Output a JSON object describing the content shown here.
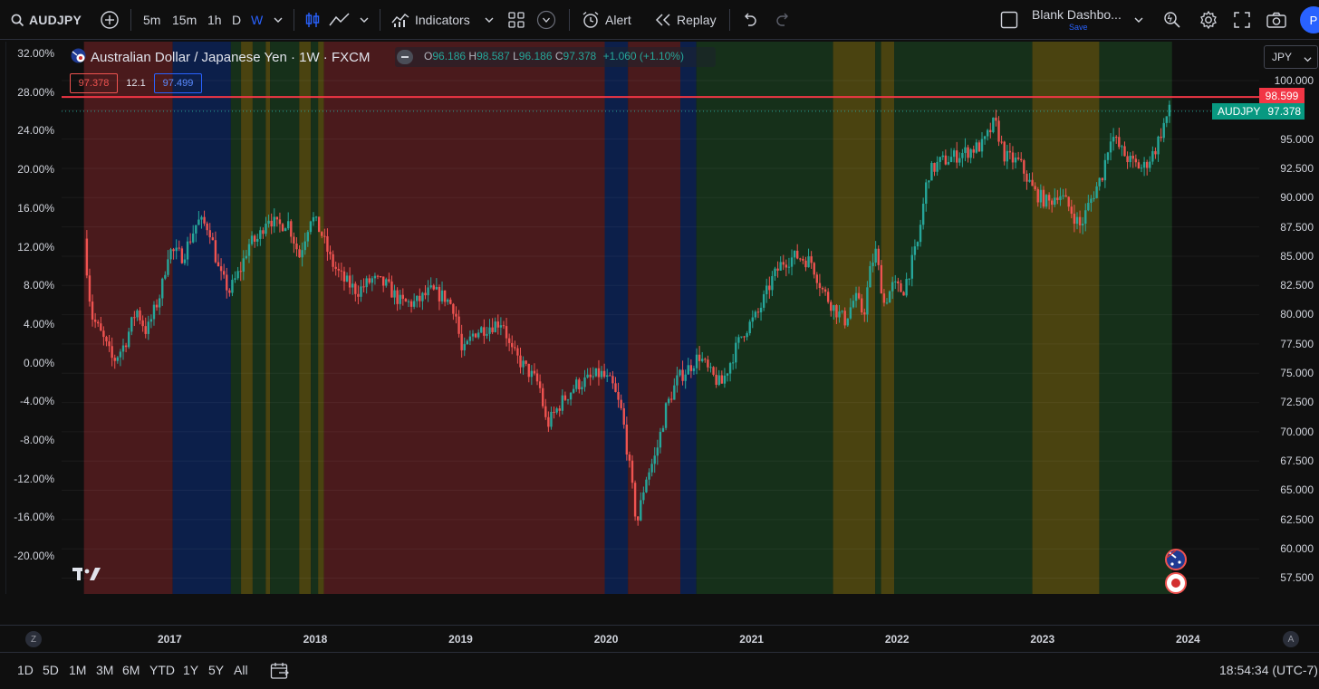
{
  "toolbar": {
    "symbol": "AUDJPY",
    "intervals": [
      "5m",
      "15m",
      "1h",
      "D",
      "W"
    ],
    "indicators_label": "Indicators",
    "alert_label": "Alert",
    "replay_label": "Replay",
    "layout_name": "Blank Dashbo...",
    "layout_save": "Save",
    "avatar_letter": "P"
  },
  "legend": {
    "title": "Australian Dollar / Japanese Yen · 1W · FXCM",
    "o_label": "O",
    "o": "96.186",
    "h_label": "H",
    "h": "98.587",
    "l_label": "L",
    "l": "96.186",
    "c_label": "C",
    "c": "97.378",
    "change": "+1.060 (+1.10%)",
    "sell": "97.378",
    "spread": "12.1",
    "buy": "97.499"
  },
  "price_scale": {
    "currency": "JPY",
    "labels": [
      "100.000",
      "97.500",
      "95.000",
      "92.500",
      "90.000",
      "87.500",
      "85.000",
      "82.500",
      "80.000",
      "77.500",
      "75.000",
      "72.500",
      "70.000",
      "67.500",
      "65.000",
      "62.500",
      "60.000",
      "57.500"
    ],
    "hline_value": "98.599",
    "last_symbol": "AUDJPY",
    "last_value": "97.378"
  },
  "pct_scale": {
    "labels": [
      "32.00%",
      "28.00%",
      "24.00%",
      "20.00%",
      "16.00%",
      "12.00%",
      "8.00%",
      "4.00%",
      "0.00%",
      "-4.00%",
      "-8.00%",
      "-12.00%",
      "-16.00%",
      "-20.00%"
    ]
  },
  "time_axis": {
    "years": [
      "2017",
      "2018",
      "2019",
      "2020",
      "2021",
      "2022",
      "2023",
      "2024"
    ],
    "left_btn": "Z",
    "right_btn": "A"
  },
  "bottom": {
    "ranges": [
      "1D",
      "5D",
      "1M",
      "3M",
      "6M",
      "YTD",
      "1Y",
      "5Y",
      "All"
    ],
    "clock": "18:54:34 (UTC-7)"
  },
  "chart_data": {
    "type": "candlestick",
    "title": "Australian Dollar / Japanese Yen · 1W · FXCM",
    "ylim": [
      55.5,
      101.5
    ],
    "x_start": 2016.4,
    "x_end": 2024.2,
    "colors": {
      "up": "#26a69a",
      "down": "#ef5350",
      "red_zone": "#4a1a1c",
      "blue_zone": "#0c1f4a",
      "green_zone": "#16301a",
      "yellow_zone": "#4a4310"
    },
    "background_zones": [
      {
        "from": 2016.4,
        "to": 2017.01,
        "color": "red"
      },
      {
        "from": 2017.01,
        "to": 2017.41,
        "color": "blue"
      },
      {
        "from": 2017.41,
        "to": 2017.48,
        "color": "green"
      },
      {
        "from": 2017.48,
        "to": 2017.56,
        "color": "yellow"
      },
      {
        "from": 2017.56,
        "to": 2017.65,
        "color": "green"
      },
      {
        "from": 2017.65,
        "to": 2017.68,
        "color": "yellow"
      },
      {
        "from": 2017.68,
        "to": 2017.88,
        "color": "green"
      },
      {
        "from": 2017.88,
        "to": 2017.96,
        "color": "yellow"
      },
      {
        "from": 2017.96,
        "to": 2018.01,
        "color": "green"
      },
      {
        "from": 2018.01,
        "to": 2018.05,
        "color": "yellow"
      },
      {
        "from": 2018.05,
        "to": 2019.98,
        "color": "red"
      },
      {
        "from": 2019.98,
        "to": 2020.14,
        "color": "blue"
      },
      {
        "from": 2020.14,
        "to": 2020.5,
        "color": "red"
      },
      {
        "from": 2020.5,
        "to": 2020.61,
        "color": "blue"
      },
      {
        "from": 2020.61,
        "to": 2021.55,
        "color": "green"
      },
      {
        "from": 2021.55,
        "to": 2021.84,
        "color": "yellow"
      },
      {
        "from": 2021.84,
        "to": 2021.88,
        "color": "green"
      },
      {
        "from": 2021.88,
        "to": 2021.97,
        "color": "yellow"
      },
      {
        "from": 2021.97,
        "to": 2022.92,
        "color": "green"
      },
      {
        "from": 2022.92,
        "to": 2023.38,
        "color": "yellow"
      },
      {
        "from": 2023.38,
        "to": 2023.88,
        "color": "green"
      }
    ],
    "price_path": [
      [
        2016.42,
        86.5
      ],
      [
        2016.47,
        80.0
      ],
      [
        2016.55,
        78.0
      ],
      [
        2016.62,
        76.0
      ],
      [
        2016.7,
        77.5
      ],
      [
        2016.78,
        80.5
      ],
      [
        2016.85,
        78.5
      ],
      [
        2016.95,
        82.0
      ],
      [
        2017.0,
        85.5
      ],
      [
        2017.1,
        85.0
      ],
      [
        2017.2,
        88.0
      ],
      [
        2017.28,
        87.5
      ],
      [
        2017.35,
        83.5
      ],
      [
        2017.42,
        82.0
      ],
      [
        2017.5,
        84.0
      ],
      [
        2017.55,
        86.0
      ],
      [
        2017.62,
        86.5
      ],
      [
        2017.68,
        88.5
      ],
      [
        2017.75,
        87.5
      ],
      [
        2017.82,
        88.0
      ],
      [
        2017.9,
        85.0
      ],
      [
        2017.98,
        88.5
      ],
      [
        2018.05,
        87.0
      ],
      [
        2018.12,
        84.5
      ],
      [
        2018.2,
        83.0
      ],
      [
        2018.3,
        82.0
      ],
      [
        2018.4,
        83.0
      ],
      [
        2018.5,
        82.5
      ],
      [
        2018.6,
        81.0
      ],
      [
        2018.7,
        81.0
      ],
      [
        2018.8,
        82.0
      ],
      [
        2018.9,
        81.5
      ],
      [
        2018.97,
        80.5
      ],
      [
        2019.02,
        76.5
      ],
      [
        2019.1,
        78.5
      ],
      [
        2019.2,
        79.0
      ],
      [
        2019.3,
        79.5
      ],
      [
        2019.35,
        77.0
      ],
      [
        2019.45,
        75.5
      ],
      [
        2019.55,
        74.0
      ],
      [
        2019.6,
        70.5
      ],
      [
        2019.7,
        72.5
      ],
      [
        2019.8,
        74.0
      ],
      [
        2019.9,
        74.5
      ],
      [
        2019.97,
        75.0
      ],
      [
        2020.05,
        74.0
      ],
      [
        2020.12,
        71.5
      ],
      [
        2020.18,
        66.0
      ],
      [
        2020.22,
        62.0
      ],
      [
        2020.28,
        66.0
      ],
      [
        2020.35,
        68.0
      ],
      [
        2020.42,
        72.0
      ],
      [
        2020.5,
        74.5
      ],
      [
        2020.58,
        75.5
      ],
      [
        2020.65,
        76.5
      ],
      [
        2020.72,
        75.0
      ],
      [
        2020.8,
        74.0
      ],
      [
        2020.88,
        76.5
      ],
      [
        2020.95,
        78.5
      ],
      [
        2021.05,
        80.0
      ],
      [
        2021.15,
        83.0
      ],
      [
        2021.22,
        84.5
      ],
      [
        2021.32,
        85.0
      ],
      [
        2021.42,
        84.5
      ],
      [
        2021.5,
        82.0
      ],
      [
        2021.58,
        80.5
      ],
      [
        2021.65,
        79.5
      ],
      [
        2021.72,
        81.5
      ],
      [
        2021.78,
        80.0
      ],
      [
        2021.82,
        83.5
      ],
      [
        2021.86,
        85.5
      ],
      [
        2021.92,
        81.0
      ],
      [
        2021.98,
        82.5
      ],
      [
        2022.05,
        82.0
      ],
      [
        2022.15,
        86.0
      ],
      [
        2022.22,
        92.0
      ],
      [
        2022.3,
        93.0
      ],
      [
        2022.4,
        93.5
      ],
      [
        2022.5,
        94.0
      ],
      [
        2022.6,
        94.5
      ],
      [
        2022.68,
        96.5
      ],
      [
        2022.75,
        93.5
      ],
      [
        2022.85,
        93.0
      ],
      [
        2022.95,
        90.5
      ],
      [
        2023.05,
        89.5
      ],
      [
        2023.12,
        90.5
      ],
      [
        2023.2,
        89.0
      ],
      [
        2023.27,
        87.5
      ],
      [
        2023.33,
        89.5
      ],
      [
        2023.42,
        92.0
      ],
      [
        2023.48,
        95.5
      ],
      [
        2023.55,
        94.0
      ],
      [
        2023.62,
        93.0
      ],
      [
        2023.7,
        92.5
      ],
      [
        2023.78,
        94.0
      ],
      [
        2023.85,
        96.5
      ],
      [
        2023.88,
        97.4
      ]
    ],
    "horizontal_line": 98.599,
    "last_price": 97.378
  }
}
